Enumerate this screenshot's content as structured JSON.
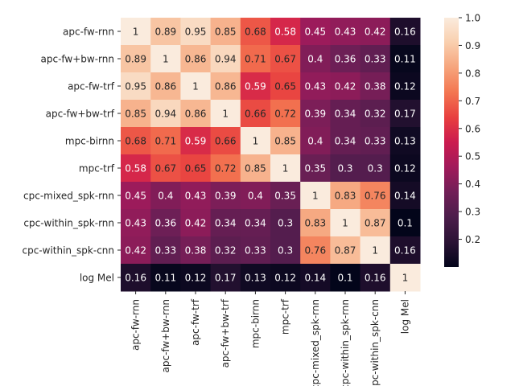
{
  "chart_data": {
    "type": "heatmap",
    "title": "",
    "xlabel": "",
    "ylabel": "",
    "rows": [
      "apc-fw-rnn",
      "apc-fw+bw-rnn",
      "apc-fw-trf",
      "apc-fw+bw-trf",
      "mpc-birnn",
      "mpc-trf",
      "cpc-mixed_spk-rnn",
      "cpc-within_spk-rnn",
      "cpc-within_spk-cnn",
      "log Mel"
    ],
    "columns": [
      "apc-fw-rnn",
      "apc-fw+bw-rnn",
      "apc-fw-trf",
      "apc-fw+bw-trf",
      "mpc-birnn",
      "mpc-trf",
      "cpc-mixed_spk-rnn",
      "cpc-within_spk-rnn",
      "cpc-within_spk-cnn",
      "log Mel"
    ],
    "values": [
      [
        1,
        0.89,
        0.95,
        0.85,
        0.68,
        0.58,
        0.45,
        0.43,
        0.42,
        0.16
      ],
      [
        0.89,
        1,
        0.86,
        0.94,
        0.71,
        0.67,
        0.4,
        0.36,
        0.33,
        0.11
      ],
      [
        0.95,
        0.86,
        1,
        0.86,
        0.59,
        0.65,
        0.43,
        0.42,
        0.38,
        0.12
      ],
      [
        0.85,
        0.94,
        0.86,
        1,
        0.66,
        0.72,
        0.39,
        0.34,
        0.32,
        0.17
      ],
      [
        0.68,
        0.71,
        0.59,
        0.66,
        1,
        0.85,
        0.4,
        0.34,
        0.33,
        0.13
      ],
      [
        0.58,
        0.67,
        0.65,
        0.72,
        0.85,
        1,
        0.35,
        0.3,
        0.3,
        0.12
      ],
      [
        0.45,
        0.4,
        0.43,
        0.39,
        0.4,
        0.35,
        1,
        0.83,
        0.76,
        0.14
      ],
      [
        0.43,
        0.36,
        0.42,
        0.34,
        0.34,
        0.3,
        0.83,
        1,
        0.87,
        0.1
      ],
      [
        0.42,
        0.33,
        0.38,
        0.32,
        0.33,
        0.3,
        0.76,
        0.87,
        1,
        0.16
      ],
      [
        0.16,
        0.11,
        0.12,
        0.17,
        0.13,
        0.12,
        0.14,
        0.1,
        0.16,
        1
      ]
    ],
    "colorbar": {
      "range": [
        0.1,
        1.0
      ],
      "ticks": [
        0.2,
        0.3,
        0.4,
        0.5,
        0.6,
        0.7,
        0.8,
        0.9,
        1.0
      ],
      "tick_labels": [
        "0.2",
        "0.3",
        "0.4",
        "0.5",
        "0.6",
        "0.7",
        "0.8",
        "0.9",
        "1.0"
      ],
      "colormap": "rocket",
      "colormap_stops": [
        "#03051a",
        "#2b1335",
        "#4c1d4b",
        "#711f57",
        "#a11a5b",
        "#cb1b4f",
        "#e83f3f",
        "#f37651",
        "#f6a47c",
        "#f9cfae",
        "#faebdd"
      ]
    },
    "annotations": "cell values shown"
  }
}
